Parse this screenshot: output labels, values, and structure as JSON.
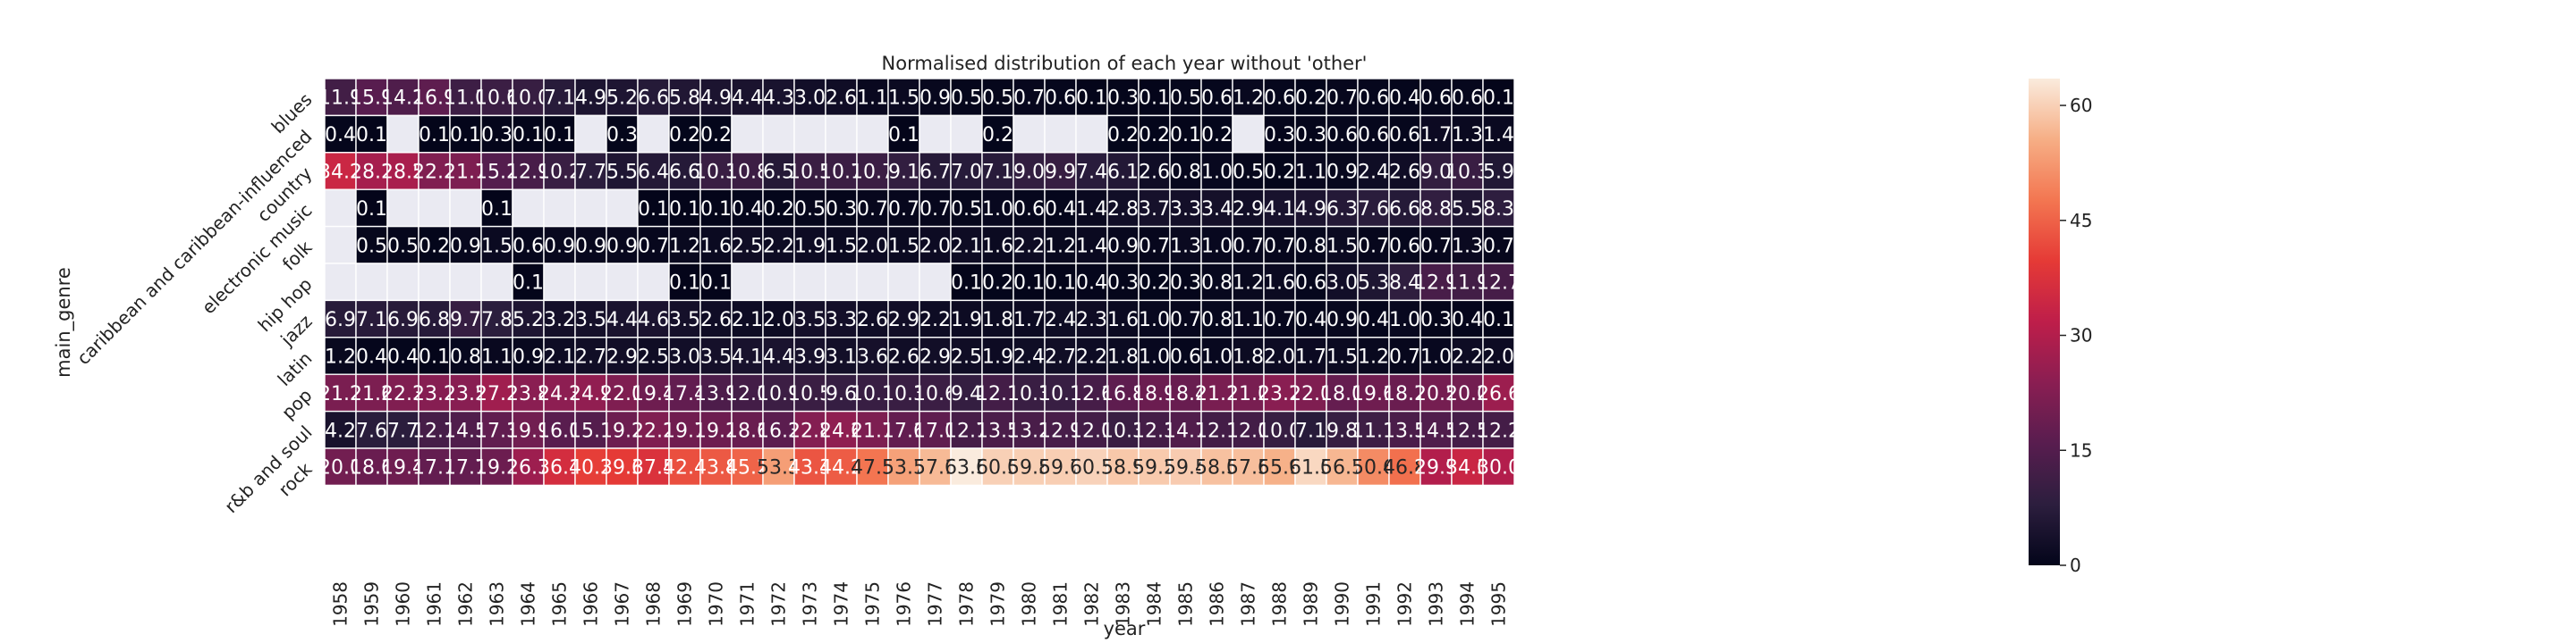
{
  "chart_data": {
    "type": "heatmap",
    "title": "Normalised distribution of each year without 'other'",
    "xlabel": "year",
    "ylabel": "main_genre",
    "x": [
      "1958",
      "1959",
      "1960",
      "1961",
      "1962",
      "1963",
      "1964",
      "1965",
      "1966",
      "1967",
      "1968",
      "1969",
      "1970",
      "1971",
      "1972",
      "1973",
      "1974",
      "1975",
      "1976",
      "1977",
      "1978",
      "1979",
      "1980",
      "1981",
      "1982",
      "1983",
      "1984",
      "1985",
      "1986",
      "1987",
      "1988",
      "1989",
      "1990",
      "1991",
      "1992",
      "1993",
      "1994",
      "1995"
    ],
    "y": [
      "blues",
      "caribbean and caribbean-influenced",
      "country",
      "electronic music",
      "folk",
      "hip hop",
      "jazz",
      "latin",
      "pop",
      "r&b and soul",
      "rock"
    ],
    "values": [
      [
        11.9,
        15.9,
        14.2,
        16.9,
        11.0,
        10.6,
        10.0,
        7.1,
        4.9,
        5.2,
        6.6,
        5.8,
        4.9,
        4.4,
        4.3,
        3.0,
        2.6,
        1.1,
        1.5,
        0.9,
        0.5,
        0.5,
        0.7,
        0.6,
        0.1,
        0.3,
        0.1,
        0.5,
        0.6,
        1.2,
        0.6,
        0.2,
        0.7,
        0.6,
        0.4,
        0.6,
        0.6,
        0.1
      ],
      [
        0.4,
        0.1,
        null,
        0.1,
        0.1,
        0.3,
        0.1,
        0.1,
        null,
        0.3,
        null,
        0.2,
        0.2,
        null,
        null,
        null,
        null,
        null,
        0.1,
        null,
        null,
        0.2,
        null,
        null,
        null,
        0.2,
        0.2,
        0.1,
        0.2,
        null,
        0.3,
        0.3,
        0.6,
        0.6,
        0.6,
        1.7,
        1.3,
        1.4
      ],
      [
        34.2,
        28.1,
        28.5,
        22.2,
        21.7,
        15.2,
        12.9,
        10.2,
        7.7,
        5.5,
        6.4,
        6.6,
        10.3,
        10.8,
        6.5,
        10.5,
        10.7,
        10.7,
        9.1,
        6.7,
        7.0,
        7.1,
        9.0,
        9.9,
        7.4,
        6.1,
        2.6,
        0.8,
        1.0,
        0.5,
        0.2,
        1.1,
        0.9,
        2.4,
        2.6,
        9.0,
        10.3,
        5.9
      ],
      [
        null,
        0.1,
        null,
        null,
        null,
        0.1,
        null,
        null,
        null,
        null,
        0.1,
        0.1,
        0.1,
        0.4,
        0.2,
        0.5,
        0.3,
        0.7,
        0.7,
        0.7,
        0.5,
        1.0,
        0.6,
        0.4,
        1.4,
        2.8,
        3.7,
        3.3,
        3.4,
        2.9,
        4.1,
        4.9,
        6.3,
        7.6,
        6.6,
        8.8,
        5.5,
        8.3
      ],
      [
        null,
        0.5,
        0.5,
        0.2,
        0.9,
        1.5,
        0.6,
        0.9,
        0.9,
        0.9,
        0.7,
        1.2,
        1.6,
        2.5,
        2.2,
        1.9,
        1.5,
        2.0,
        1.5,
        2.0,
        2.1,
        1.6,
        2.2,
        1.2,
        1.4,
        0.9,
        0.7,
        1.3,
        1.0,
        0.7,
        0.7,
        0.8,
        1.5,
        0.7,
        0.6,
        0.7,
        1.3,
        0.7
      ],
      [
        null,
        null,
        null,
        null,
        null,
        null,
        0.1,
        null,
        null,
        null,
        null,
        0.1,
        0.1,
        null,
        null,
        null,
        null,
        null,
        null,
        null,
        0.1,
        0.2,
        0.1,
        0.1,
        0.4,
        0.3,
        0.2,
        0.3,
        0.8,
        1.2,
        1.6,
        0.6,
        3.0,
        5.3,
        8.4,
        12.9,
        11.9,
        12.7
      ],
      [
        6.9,
        7.1,
        6.9,
        6.8,
        9.7,
        7.8,
        5.2,
        3.2,
        3.5,
        4.4,
        4.6,
        3.5,
        2.6,
        2.1,
        2.0,
        3.5,
        3.3,
        2.6,
        2.9,
        2.2,
        1.9,
        1.8,
        1.7,
        2.4,
        2.3,
        1.6,
        1.0,
        0.7,
        0.8,
        1.1,
        0.7,
        0.4,
        0.9,
        0.4,
        1.0,
        0.3,
        0.4,
        0.1
      ],
      [
        1.2,
        0.4,
        0.4,
        0.1,
        0.8,
        1.1,
        0.9,
        2.1,
        2.7,
        2.9,
        2.5,
        3.0,
        3.5,
        4.1,
        4.4,
        3.9,
        3.1,
        3.6,
        2.6,
        2.9,
        2.5,
        1.9,
        2.4,
        2.7,
        2.2,
        1.8,
        1.0,
        0.6,
        1.0,
        1.8,
        2.0,
        1.7,
        1.5,
        1.2,
        0.7,
        1.0,
        2.2,
        2.0
      ],
      [
        21.2,
        21.6,
        22.3,
        23.2,
        23.5,
        27.1,
        23.8,
        24.3,
        24.9,
        22.0,
        19.4,
        17.4,
        13.9,
        12.0,
        10.9,
        10.5,
        9.6,
        10.1,
        10.3,
        10.6,
        9.4,
        12.1,
        10.3,
        10.1,
        12.6,
        16.8,
        18.9,
        18.4,
        21.1,
        21.0,
        23.7,
        22.0,
        18.0,
        19.6,
        18.7,
        20.5,
        20.0,
        26.6
      ],
      [
        4.2,
        7.6,
        7.7,
        12.7,
        14.5,
        17.3,
        19.9,
        16.0,
        15.1,
        19.2,
        22.2,
        19.7,
        19.2,
        18.6,
        16.3,
        22.8,
        24.6,
        21.7,
        17.6,
        17.0,
        12.7,
        13.5,
        13.2,
        12.9,
        12.0,
        10.3,
        12.3,
        14.7,
        12.1,
        12.0,
        10.0,
        7.1,
        9.8,
        11.1,
        13.5,
        14.5,
        12.5,
        12.2
      ],
      [
        20.0,
        18.6,
        19.4,
        17.7,
        17.7,
        19.1,
        26.7,
        36.1,
        40.2,
        39.6,
        37.5,
        42.4,
        43.8,
        45.2,
        53.3,
        43.3,
        44.2,
        47.5,
        53.7,
        57.1,
        63.5,
        60.0,
        59.8,
        59.7,
        60.3,
        58.9,
        59.2,
        59.4,
        58.0,
        57.6,
        55.9,
        61.0,
        56.7,
        50.6,
        46.8,
        29.9,
        34.0,
        30.0
      ]
    ],
    "vmin": 0,
    "vmax": 63.5,
    "colorbar_ticks": [
      "0",
      "15",
      "30",
      "45",
      "60"
    ],
    "colormap": "rocket",
    "missing_color": "#eaeaf2"
  }
}
